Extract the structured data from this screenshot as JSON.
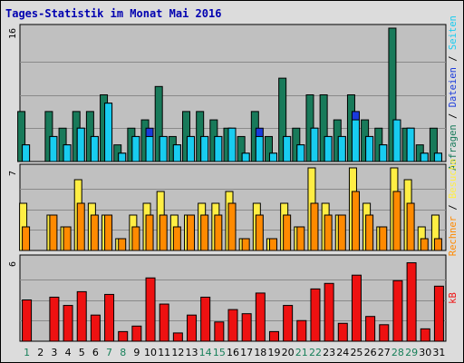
{
  "title": "Tages-Statistik im Monat Mai 2016",
  "colors": {
    "panel_bg": "#c0c0c0",
    "grid": "#8a8a8a",
    "anfragen": "#187a5a",
    "dateien": "#1a3adc",
    "seiten": "#18ccf0",
    "besuche": "#ff8a00",
    "rechner": "#ffee44",
    "kb": "#ee1111",
    "weekend_label": "#18805a",
    "weekday_label": "#000000"
  },
  "chart_data": [
    {
      "type": "bar",
      "name": "top-panel",
      "ymax_label": "16",
      "ylim": [
        0,
        16
      ],
      "right_label": [
        {
          "text": "Anfragen",
          "color": "#187a5a"
        },
        {
          "text": " / ",
          "color": "#000000"
        },
        {
          "text": "Dateien",
          "color": "#1a3adc"
        },
        {
          "text": " / ",
          "color": "#000000"
        },
        {
          "text": "Seiten",
          "color": "#18ccf0"
        }
      ],
      "categories": [
        "1",
        "2",
        "3",
        "4",
        "5",
        "6",
        "7",
        "8",
        "9",
        "10",
        "11",
        "12",
        "13",
        "14",
        "15",
        "16",
        "17",
        "18",
        "19",
        "20",
        "21",
        "22",
        "23",
        "24",
        "25",
        "26",
        "27",
        "28",
        "29",
        "30",
        "31"
      ],
      "series": [
        {
          "name": "Anfragen",
          "values": [
            6,
            0,
            6,
            4,
            6,
            6,
            8,
            2,
            4,
            5,
            9,
            3,
            6,
            6,
            5,
            4,
            3,
            6,
            3,
            10,
            4,
            8,
            8,
            5,
            8,
            5,
            4,
            16,
            4,
            2,
            4
          ]
        },
        {
          "name": "Dateien",
          "values": [
            2,
            0,
            3,
            2,
            4,
            3,
            7,
            1,
            3,
            4,
            3,
            2,
            3,
            3,
            3,
            4,
            1,
            4,
            1,
            3,
            2,
            4,
            3,
            3,
            6,
            3,
            2,
            5,
            4,
            1,
            1
          ]
        },
        {
          "name": "Seiten",
          "values": [
            2,
            0,
            3,
            2,
            4,
            3,
            7,
            1,
            3,
            3,
            3,
            2,
            3,
            3,
            3,
            4,
            1,
            3,
            1,
            3,
            2,
            4,
            3,
            3,
            5,
            3,
            2,
            5,
            4,
            1,
            1
          ]
        }
      ]
    },
    {
      "type": "bar",
      "name": "middle-panel",
      "ymax_label": "7",
      "ylim": [
        0,
        7
      ],
      "right_label": [
        {
          "text": "Rechner",
          "color": "#ff8a00"
        },
        {
          "text": " / ",
          "color": "#000000"
        },
        {
          "text": "Besuche",
          "color": "#ffee44"
        }
      ],
      "categories": [
        "1",
        "2",
        "3",
        "4",
        "5",
        "6",
        "7",
        "8",
        "9",
        "10",
        "11",
        "12",
        "13",
        "14",
        "15",
        "16",
        "17",
        "18",
        "19",
        "20",
        "21",
        "22",
        "23",
        "24",
        "25",
        "26",
        "27",
        "28",
        "29",
        "30",
        "31"
      ],
      "series": [
        {
          "name": "Rechner",
          "values": [
            2,
            0,
            3,
            2,
            4,
            3,
            3,
            1,
            2,
            3,
            3,
            2,
            3,
            3,
            3,
            4,
            1,
            3,
            1,
            3,
            2,
            4,
            3,
            3,
            5,
            3,
            2,
            5,
            4,
            1,
            1
          ]
        },
        {
          "name": "Besuche",
          "values": [
            4,
            0,
            3,
            2,
            6,
            4,
            3,
            1,
            3,
            4,
            5,
            3,
            3,
            4,
            4,
            5,
            1,
            4,
            1,
            4,
            2,
            7,
            4,
            3,
            7,
            4,
            2,
            7,
            6,
            2,
            3
          ]
        }
      ]
    },
    {
      "type": "bar",
      "name": "bottom-panel",
      "ymax_label": "6",
      "ylim": [
        0,
        6
      ],
      "right_label": [
        {
          "text": "kB",
          "color": "#ee1111"
        }
      ],
      "categories": [
        "1",
        "2",
        "3",
        "4",
        "5",
        "6",
        "7",
        "8",
        "9",
        "10",
        "11",
        "12",
        "13",
        "14",
        "15",
        "16",
        "17",
        "18",
        "19",
        "20",
        "21",
        "22",
        "23",
        "24",
        "25",
        "26",
        "27",
        "28",
        "29",
        "30",
        "31"
      ],
      "series": [
        {
          "name": "kB",
          "values": [
            3.0,
            0,
            3.2,
            2.6,
            3.6,
            1.9,
            3.4,
            0.7,
            1.1,
            4.6,
            2.7,
            0.6,
            1.9,
            3.2,
            1.4,
            2.3,
            2.0,
            3.5,
            0.7,
            2.6,
            1.5,
            3.8,
            4.2,
            1.3,
            4.8,
            1.8,
            1.2,
            4.4,
            5.7,
            0.9,
            4.0
          ]
        }
      ]
    }
  ],
  "x_axis": {
    "labels": [
      "1",
      "2",
      "3",
      "4",
      "5",
      "6",
      "7",
      "8",
      "9",
      "10",
      "11",
      "12",
      "13",
      "14",
      "15",
      "16",
      "17",
      "18",
      "19",
      "20",
      "21",
      "22",
      "23",
      "24",
      "25",
      "26",
      "27",
      "28",
      "29",
      "30",
      "31"
    ],
    "weekend": [
      1,
      7,
      8,
      14,
      15,
      21,
      22,
      28,
      29
    ]
  }
}
